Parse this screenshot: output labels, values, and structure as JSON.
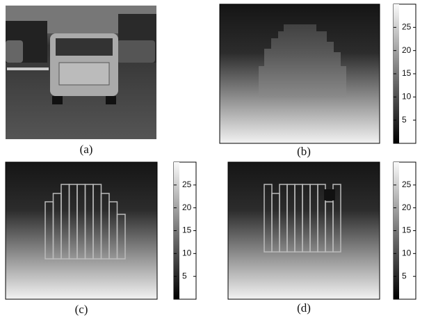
{
  "panels": [
    {
      "caption": "(a)"
    },
    {
      "caption": "(b)",
      "colorbar": {
        "lim": [
          0,
          30
        ],
        "ticks": [
          5,
          10,
          15,
          20,
          25
        ]
      }
    },
    {
      "caption": "(c)",
      "colorbar": {
        "lim": [
          0,
          30
        ],
        "ticks": [
          5,
          10,
          15,
          20,
          25
        ]
      }
    },
    {
      "caption": "(d)",
      "colorbar": {
        "lim": [
          0,
          30
        ],
        "ticks": [
          5,
          10,
          15,
          20,
          25
        ]
      }
    }
  ]
}
